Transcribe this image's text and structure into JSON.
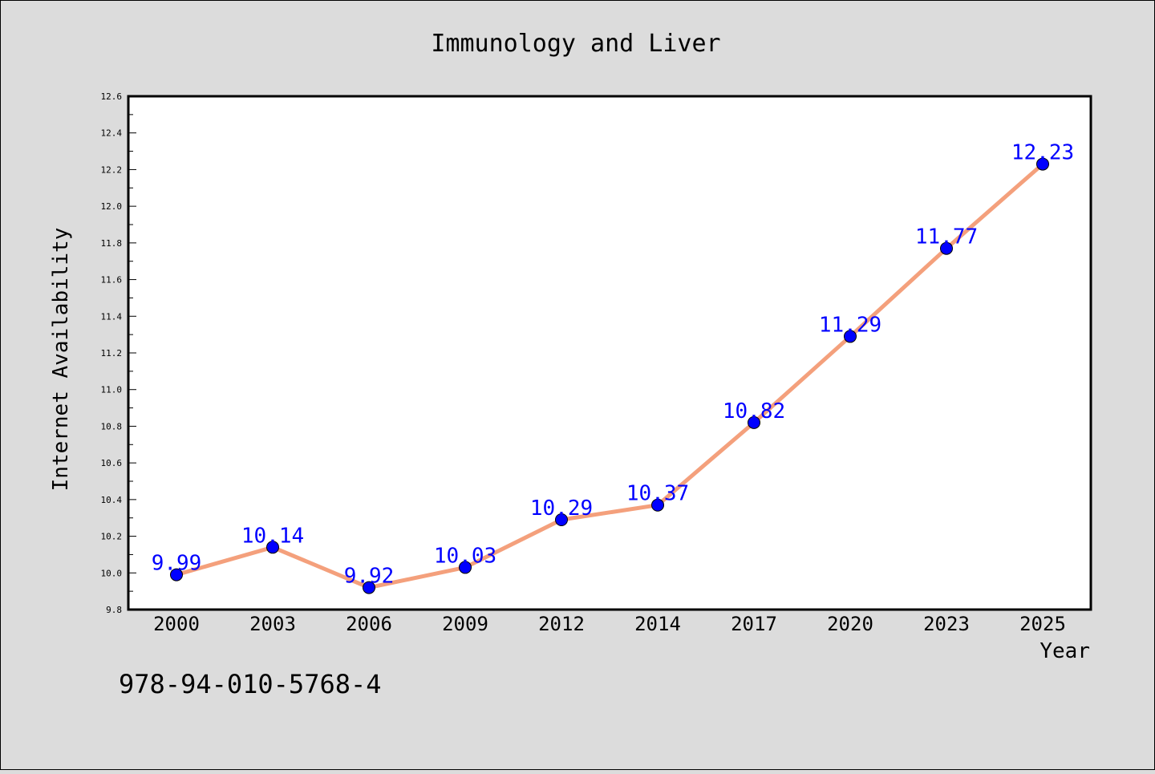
{
  "chart_data": {
    "type": "line",
    "title": "Immunology and Liver",
    "xlabel": "Year",
    "ylabel": "Internet Availability",
    "categories": [
      "2000",
      "2003",
      "2006",
      "2009",
      "2012",
      "2014",
      "2017",
      "2020",
      "2023",
      "2025"
    ],
    "series": [
      {
        "values": [
          9.99,
          10.14,
          9.92,
          10.03,
          10.29,
          10.37,
          10.82,
          11.29,
          11.77,
          12.23
        ],
        "labels": [
          "9.99",
          "10.14",
          "9.92",
          "10.03",
          "10.29",
          "10.37",
          "10.82",
          "11.29",
          "11.77",
          "12.23"
        ]
      }
    ],
    "ylim": [
      9.8,
      12.6
    ],
    "yticks": [
      "9.8",
      "10.0",
      "10.2",
      "10.4",
      "10.6",
      "10.8",
      "11.0",
      "11.2",
      "11.4",
      "11.6",
      "11.8",
      "12.0",
      "12.2",
      "12.4",
      "12.6"
    ],
    "grid": false,
    "annotation": "978-94-010-5768-4",
    "colors": {
      "background": "#dcdcdc",
      "plot_background": "#ffffff",
      "line": "#f4a07c",
      "marker": "#0000ff",
      "data_label": "#0000ff",
      "text": "#000000"
    }
  }
}
